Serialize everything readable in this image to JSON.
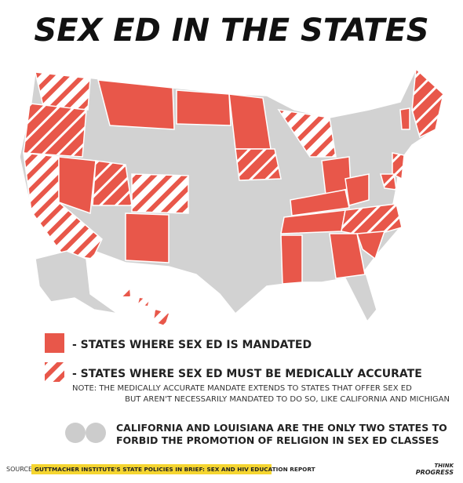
{
  "header": {
    "title": "SEX ED IN THE STATES"
  },
  "legend": {
    "items": [
      "- STATES WHERE SEX ED IS MANDATED",
      "- STATES WHERE SEX ED MUST BE MEDICALLY ACCURATE"
    ],
    "note": [
      "NOTE: THE MEDICALLY ACCURATE MANDATE EXTENDS TO STATES THAT OFFER SEX ED",
      "BUT AREN'T NECESSARILY MANDATED TO DO SO, LIKE CALIFORNIA AND MICHIGAN"
    ]
  },
  "callout": [
    "CALIFORNIA AND LOUISIANA ARE THE ONLY TWO STATES TO",
    "FORBID THE PROMOTION OF RELIGION IN SEX ED CLASSES"
  ],
  "footer": {
    "source_label": "SOURCE:",
    "source": "GUTTMACHER INSTITUTE'S STATE POLICIES IN BRIEF: SEX AND HIV EDUCATION REPORT",
    "logo": [
      "THINK",
      "PROGRESS"
    ]
  }
}
